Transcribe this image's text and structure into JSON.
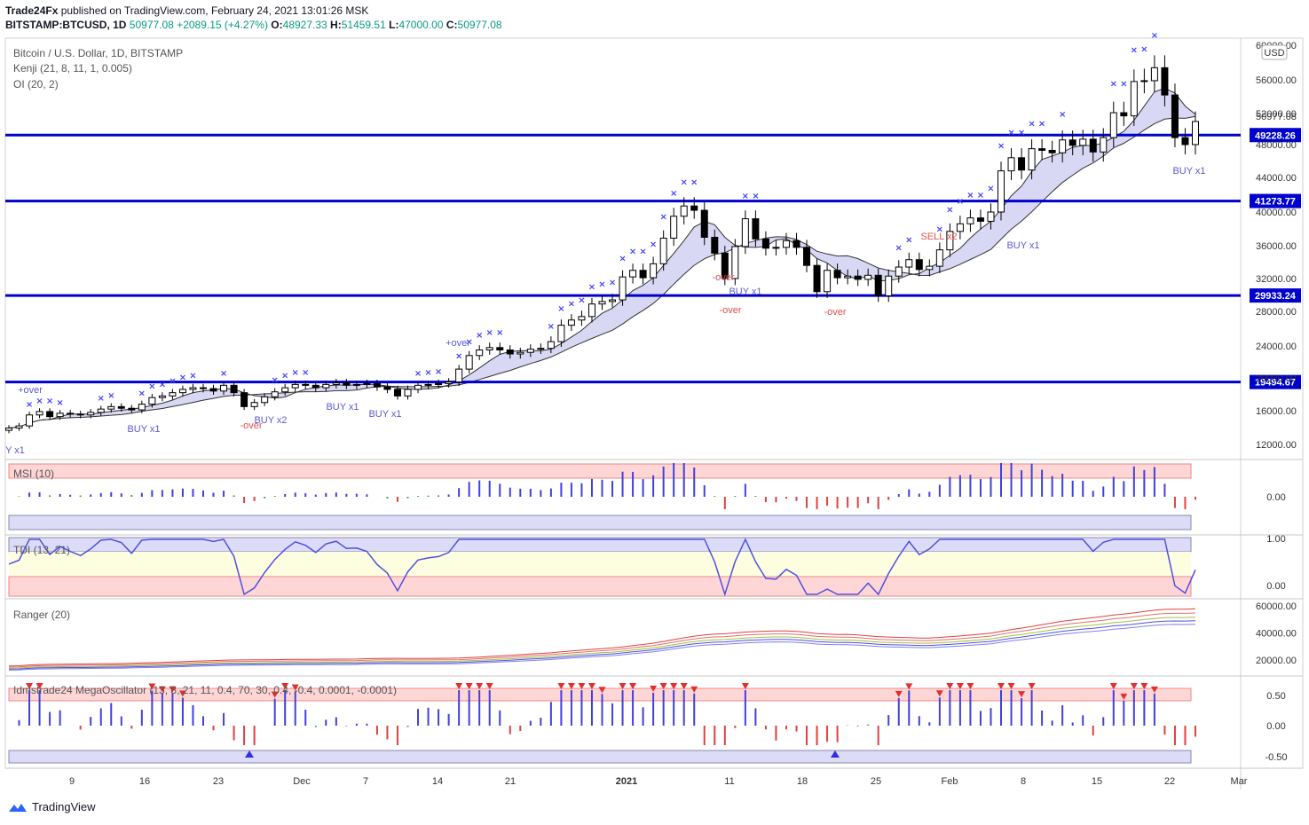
{
  "header": {
    "publisher": "Trade24Fx",
    "published_text": "published on TradingView.com, February 24, 2021 13:01:26 MSK",
    "symbol": "BITSTAMP:BTCUSD, 1D",
    "change_value": "50977.08",
    "change_text": "+2089.15 (+4.27%)",
    "o_label": "O:",
    "o_value": "48927.33",
    "h_label": "H:",
    "h_value": "51459.51",
    "l_label": "L:",
    "l_value": "47000.00",
    "c_label": "C:",
    "c_value": "50977.08"
  },
  "footer": {
    "brand": "TradingView"
  },
  "chart_data": {
    "type": "candlestick",
    "title": "Bitcoin / U.S. Dollar, 1D, BITSTAMP",
    "currency_badge": "USD",
    "indicators_legend": [
      "Kenji (21, 8, 11, 1, 0.005)",
      "OI (20, 2)"
    ],
    "price_axis_ticks": [
      "60000.00",
      "56000.00",
      "52000.00",
      "48000.00",
      "44000.00",
      "40000.00",
      "36000.00",
      "32000.00",
      "28000.00",
      "24000.00",
      "20000.00",
      "16000.00",
      "12000.00"
    ],
    "last_price_label": "50977.08",
    "horizontal_levels": [
      {
        "value": 49228.26,
        "label": "49228.26"
      },
      {
        "value": 41273.77,
        "label": "41273.77"
      },
      {
        "value": 29933.24,
        "label": "29933.24"
      },
      {
        "value": 19494.67,
        "label": "19494.67"
      }
    ],
    "x_axis_labels": [
      "9",
      "16",
      "23",
      "Dec",
      "7",
      "14",
      "21",
      "2021",
      "11",
      "18",
      "25",
      "Feb",
      "8",
      "15",
      "22",
      "Mar"
    ],
    "candles_close": [
      13950,
      14200,
      15500,
      15900,
      15300,
      15700,
      15600,
      15500,
      15800,
      16200,
      16500,
      16300,
      16100,
      16800,
      17600,
      17800,
      18200,
      18600,
      18800,
      18700,
      18400,
      19100,
      18200,
      16500,
      17000,
      17700,
      18300,
      18800,
      19200,
      19100,
      18800,
      19200,
      19400,
      19100,
      19200,
      19300,
      18900,
      18600,
      17800,
      18600,
      19100,
      19200,
      19300,
      19500,
      21100,
      22800,
      23500,
      23800,
      23500,
      23000,
      23200,
      23600,
      23700,
      24500,
      26400,
      27000,
      27400,
      28900,
      29200,
      29400,
      32200,
      33000,
      32100,
      33800,
      36900,
      39500,
      40700,
      40200,
      37000,
      35100,
      32000,
      35900,
      39200,
      36800,
      35700,
      35800,
      36600,
      35800,
      33600,
      30400,
      33000,
      32100,
      32300,
      31900,
      32400,
      29900,
      32300,
      33400,
      34300,
      33100,
      33500,
      35500,
      37700,
      38600,
      39300,
      38900,
      40000,
      44800,
      46400,
      44900,
      47500,
      47300,
      47000,
      48600,
      47900,
      48700,
      47100,
      48900,
      52100,
      51700,
      55800,
      55900,
      57400,
      54200,
      48900,
      48000,
      50977
    ],
    "annotations": [
      {
        "text": "+over",
        "color": "#5a5ad8"
      },
      {
        "text": "BUY x1",
        "color": "#5a5ad8"
      },
      {
        "text": "BUY x2",
        "color": "#5a5ad8"
      },
      {
        "text": "-over",
        "color": "#e05050"
      },
      {
        "text": "SELL x2",
        "color": "#e05050"
      },
      {
        "text": "Y x1",
        "color": "#5a5ad8"
      }
    ],
    "panes": [
      {
        "name": "MSI (10)",
        "ticks": [
          "0.00"
        ]
      },
      {
        "name": "TDI (13, 21)",
        "ticks": [
          "1.00",
          "0.00"
        ]
      },
      {
        "name": "Ranger (20)",
        "ticks": [
          "60000.00",
          "40000.00",
          "20000.00"
        ]
      },
      {
        "name": "Idmstrade24 MegaOscillator (13, 8, 21, 11, 0.4, 70, 30, 0.4, -0.4, 0.0001, -0.0001)",
        "ticks": [
          "0.50",
          "0.00",
          "-0.50"
        ]
      }
    ],
    "colors": {
      "up_candle": "#ffffff",
      "down_candle": "#000000",
      "level_line": "#0000cc",
      "band_fill": "#c8c8f0",
      "buy": "#4040ff",
      "sell": "#ff3030"
    }
  }
}
